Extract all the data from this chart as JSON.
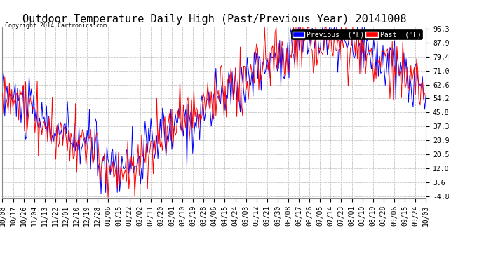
{
  "title": "Outdoor Temperature Daily High (Past/Previous Year) 20141008",
  "copyright": "Copyright 2014 Cartronics.com",
  "ytick_values": [
    96.3,
    87.9,
    79.4,
    71.0,
    62.6,
    54.2,
    45.8,
    37.3,
    28.9,
    20.5,
    12.0,
    3.6,
    -4.8
  ],
  "xtick_labels": [
    "10/08",
    "10/17",
    "10/26",
    "11/04",
    "11/13",
    "11/22",
    "12/01",
    "12/10",
    "12/19",
    "12/28",
    "01/06",
    "01/15",
    "01/22",
    "02/02",
    "02/11",
    "02/20",
    "03/01",
    "03/10",
    "03/19",
    "03/28",
    "04/06",
    "04/15",
    "04/24",
    "05/03",
    "05/12",
    "05/21",
    "05/30",
    "06/08",
    "06/17",
    "06/26",
    "07/05",
    "07/14",
    "07/23",
    "08/01",
    "08/10",
    "08/19",
    "08/28",
    "09/06",
    "09/15",
    "09/24",
    "10/03"
  ],
  "legend_previous_label": "Previous  (°F)",
  "legend_past_label": "Past  (°F)",
  "color_previous": "#0000ff",
  "color_past": "#ff0000",
  "background_color": "#ffffff",
  "grid_color": "#bbbbbb",
  "title_fontsize": 11,
  "tick_fontsize": 7,
  "fig_width": 6.9,
  "fig_height": 3.75,
  "dpi": 100,
  "ymin": -4.8,
  "ymax": 96.3
}
